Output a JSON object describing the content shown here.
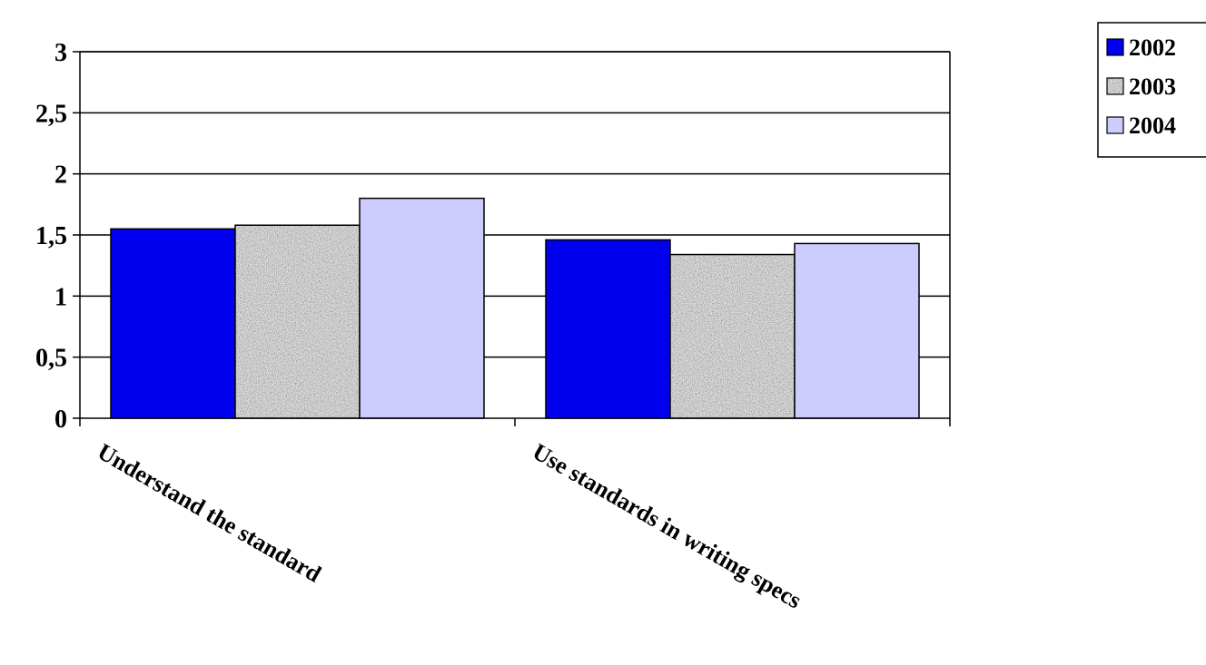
{
  "chart_data": {
    "type": "bar",
    "categories": [
      "Understand the standard",
      "Use standards in writing specs"
    ],
    "series": [
      {
        "name": "2002",
        "values": [
          1.55,
          1.46
        ],
        "color": "#0000ee",
        "pattern": "solid"
      },
      {
        "name": "2003",
        "values": [
          1.58,
          1.34
        ],
        "color": "#9a9a9a",
        "pattern": "speckled-gray"
      },
      {
        "name": "2004",
        "values": [
          1.8,
          1.43
        ],
        "color": "#ccccff",
        "pattern": "solid"
      }
    ],
    "yticks": [
      "0",
      "0,5",
      "1",
      "1,5",
      "2",
      "2,5",
      "3"
    ],
    "ytick_values": [
      0,
      0.5,
      1,
      1.5,
      2,
      2.5,
      3
    ],
    "ylim": [
      0,
      3
    ],
    "grid": true,
    "legend_position": "top-right"
  }
}
